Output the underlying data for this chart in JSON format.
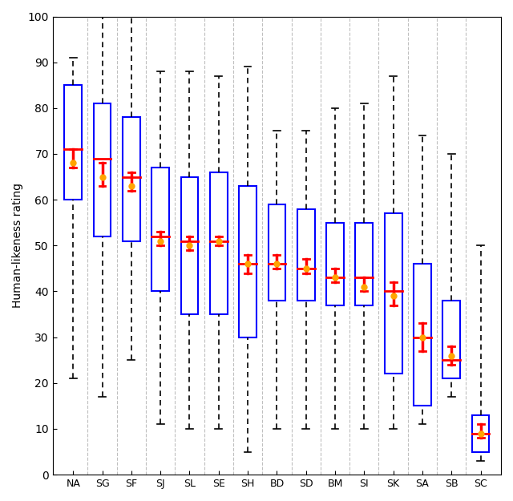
{
  "categories": [
    "NA",
    "SG",
    "SF",
    "SJ",
    "SL",
    "SE",
    "SH",
    "BD",
    "SD",
    "BM",
    "SI",
    "SK",
    "SA",
    "SB",
    "SC"
  ],
  "boxes": [
    {
      "whislo": 21,
      "q1": 60,
      "med": 71,
      "q3": 85,
      "whishi": 91,
      "mean": 68,
      "mean_ci": [
        67,
        71
      ]
    },
    {
      "whislo": 17,
      "q1": 52,
      "med": 69,
      "q3": 81,
      "whishi": 100,
      "mean": 65,
      "mean_ci": [
        63,
        68
      ]
    },
    {
      "whislo": 25,
      "q1": 51,
      "med": 65,
      "q3": 78,
      "whishi": 100,
      "mean": 63,
      "mean_ci": [
        62,
        66
      ]
    },
    {
      "whislo": 11,
      "q1": 40,
      "med": 52,
      "q3": 67,
      "whishi": 88,
      "mean": 51,
      "mean_ci": [
        50,
        53
      ]
    },
    {
      "whislo": 10,
      "q1": 35,
      "med": 51,
      "q3": 65,
      "whishi": 88,
      "mean": 50,
      "mean_ci": [
        49,
        52
      ]
    },
    {
      "whislo": 10,
      "q1": 35,
      "med": 51,
      "q3": 66,
      "whishi": 87,
      "mean": 51,
      "mean_ci": [
        50,
        52
      ]
    },
    {
      "whislo": 5,
      "q1": 30,
      "med": 46,
      "q3": 63,
      "whishi": 89,
      "mean": 46,
      "mean_ci": [
        44,
        48
      ]
    },
    {
      "whislo": 10,
      "q1": 38,
      "med": 46,
      "q3": 59,
      "whishi": 75,
      "mean": 46,
      "mean_ci": [
        45,
        48
      ]
    },
    {
      "whislo": 10,
      "q1": 38,
      "med": 45,
      "q3": 58,
      "whishi": 75,
      "mean": 45,
      "mean_ci": [
        44,
        47
      ]
    },
    {
      "whislo": 10,
      "q1": 37,
      "med": 43,
      "q3": 55,
      "whishi": 80,
      "mean": 43,
      "mean_ci": [
        42,
        45
      ]
    },
    {
      "whislo": 10,
      "q1": 37,
      "med": 43,
      "q3": 55,
      "whishi": 81,
      "mean": 41,
      "mean_ci": [
        40,
        43
      ]
    },
    {
      "whislo": 10,
      "q1": 22,
      "med": 40,
      "q3": 57,
      "whishi": 87,
      "mean": 39,
      "mean_ci": [
        37,
        42
      ]
    },
    {
      "whislo": 11,
      "q1": 15,
      "med": 30,
      "q3": 46,
      "whishi": 74,
      "mean": 30,
      "mean_ci": [
        27,
        33
      ]
    },
    {
      "whislo": 17,
      "q1": 21,
      "med": 25,
      "q3": 38,
      "whishi": 70,
      "mean": 26,
      "mean_ci": [
        24,
        28
      ]
    },
    {
      "whislo": 3,
      "q1": 5,
      "med": 9,
      "q3": 13,
      "whishi": 50,
      "mean": 9,
      "mean_ci": [
        8,
        11
      ]
    }
  ],
  "ylabel": "Human-likeness rating",
  "ylim": [
    0,
    100
  ],
  "yticks": [
    0,
    10,
    20,
    30,
    40,
    50,
    60,
    70,
    80,
    90,
    100
  ],
  "box_color": "#0000ff",
  "median_color": "#ff0000",
  "mean_color": "#ffa500",
  "whisker_style": "--",
  "background_color": "#ffffff"
}
